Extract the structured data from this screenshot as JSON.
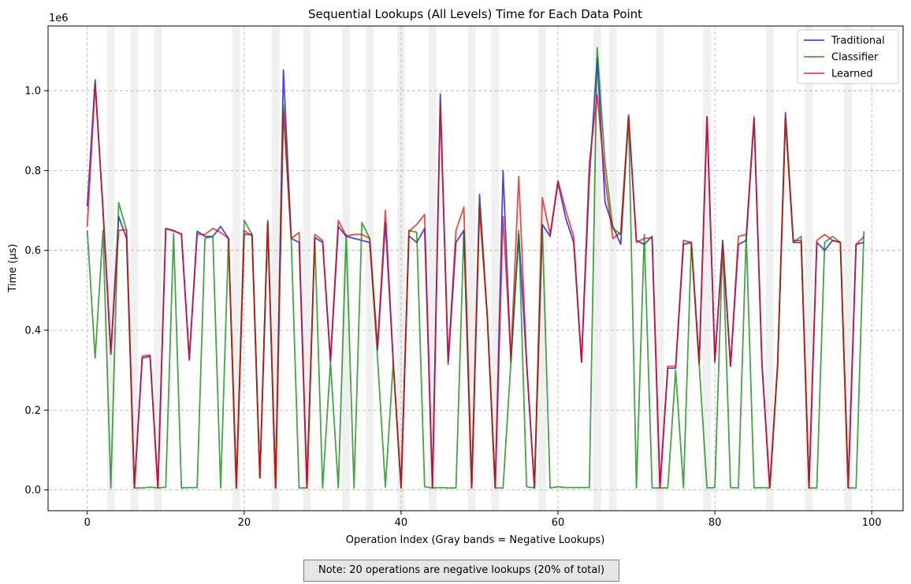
{
  "chart_data": {
    "type": "line",
    "title": "Sequential Lookups (All Levels) Time for Each Data Point",
    "xlabel": "Operation Index (Gray bands = Negative Lookups)",
    "ylabel": "Time (µs)",
    "y_offset_label": "1e6",
    "xlim": [
      -5,
      104
    ],
    "ylim": [
      -52000,
      1162000
    ],
    "x_ticks": [
      0,
      20,
      40,
      60,
      80,
      100
    ],
    "x_tick_labels": [
      "0",
      "20",
      "40",
      "60",
      "80",
      "100"
    ],
    "y_ticks": [
      0,
      200000,
      400000,
      600000,
      800000,
      1000000
    ],
    "y_tick_labels": [
      "0.0",
      "0.2",
      "0.4",
      "0.6",
      "0.8",
      "1.0"
    ],
    "grid": true,
    "legend_position": "top-right",
    "negative_lookup_indices": [
      3,
      6,
      9,
      19,
      24,
      28,
      33,
      36,
      40,
      44,
      49,
      52,
      58,
      65,
      67,
      73,
      79,
      87,
      92,
      97
    ],
    "series": [
      {
        "name": "Traditional",
        "color": "#0000dd",
        "values": [
          710000,
          1027000,
          700000,
          340000,
          685000,
          630000,
          5000,
          330000,
          335000,
          5000,
          655000,
          650000,
          640000,
          325000,
          648000,
          635000,
          635000,
          660000,
          630000,
          5000,
          640000,
          640000,
          30000,
          670000,
          5000,
          1052000,
          630000,
          620000,
          5000,
          632000,
          620000,
          320000,
          660000,
          635000,
          630000,
          625000,
          620000,
          350000,
          670000,
          320000,
          5000,
          636000,
          620000,
          655000,
          5000,
          992000,
          315000,
          620000,
          650000,
          5000,
          740000,
          430000,
          5000,
          800000,
          320000,
          640000,
          320000,
          5000,
          665000,
          635000,
          770000,
          680000,
          620000,
          320000,
          780000,
          1082000,
          720000,
          660000,
          615000,
          935000,
          625000,
          615000,
          635000,
          5000,
          305000,
          305000,
          615000,
          620000,
          315000,
          935000,
          320000,
          625000,
          310000,
          615000,
          625000,
          930000,
          315000,
          5000,
          310000,
          945000,
          620000,
          620000,
          5000,
          620000,
          600000,
          625000,
          620000,
          5000,
          615000,
          620000
        ]
      },
      {
        "name": "Classifier",
        "color": "#008000",
        "values": [
          650000,
          330000,
          650000,
          5000,
          720000,
          650000,
          5000,
          5000,
          7000,
          5000,
          7000,
          642000,
          5000,
          6000,
          6000,
          630000,
          635000,
          5000,
          630000,
          5000,
          675000,
          640000,
          30000,
          670000,
          5000,
          965000,
          625000,
          5000,
          5000,
          630000,
          5000,
          320000,
          5000,
          640000,
          5000,
          670000,
          630000,
          330000,
          7000,
          320000,
          5000,
          650000,
          645000,
          8000,
          5000,
          6000,
          5000,
          5000,
          650000,
          5000,
          715000,
          430000,
          5000,
          5000,
          320000,
          650000,
          8000,
          5000,
          660000,
          5000,
          8000,
          6000,
          6000,
          6000,
          6000,
          1108000,
          820000,
          655000,
          640000,
          935000,
          5000,
          640000,
          5000,
          5000,
          5000,
          300000,
          5000,
          620000,
          315000,
          5000,
          6000,
          620000,
          6000,
          5000,
          640000,
          5000,
          6000,
          5000,
          310000,
          930000,
          620000,
          635000,
          5000,
          5000,
          620000,
          635000,
          620000,
          5000,
          5000,
          648000
        ]
      },
      {
        "name": "Learned",
        "color": "#ee0000",
        "values": [
          660000,
          1015000,
          705000,
          345000,
          650000,
          652000,
          5000,
          335000,
          338000,
          5000,
          655000,
          648000,
          642000,
          330000,
          640000,
          640000,
          655000,
          645000,
          630000,
          5000,
          650000,
          636000,
          30000,
          675000,
          5000,
          950000,
          630000,
          645000,
          5000,
          640000,
          625000,
          325000,
          675000,
          636000,
          640000,
          640000,
          630000,
          360000,
          700000,
          320000,
          5000,
          648000,
          665000,
          690000,
          5000,
          962000,
          325000,
          650000,
          708000,
          5000,
          705000,
          435000,
          5000,
          685000,
          330000,
          785000,
          320000,
          5000,
          732000,
          640000,
          775000,
          700000,
          635000,
          320000,
          820000,
          990000,
          780000,
          630000,
          645000,
          940000,
          620000,
          630000,
          632000,
          5000,
          310000,
          310000,
          625000,
          620000,
          320000,
          935000,
          325000,
          615000,
          310000,
          635000,
          640000,
          935000,
          320000,
          5000,
          315000,
          930000,
          625000,
          625000,
          5000,
          625000,
          640000,
          625000,
          620000,
          5000,
          615000,
          635000
        ]
      }
    ]
  },
  "note": "Note: 20 operations are negative lookups (20% of total)"
}
